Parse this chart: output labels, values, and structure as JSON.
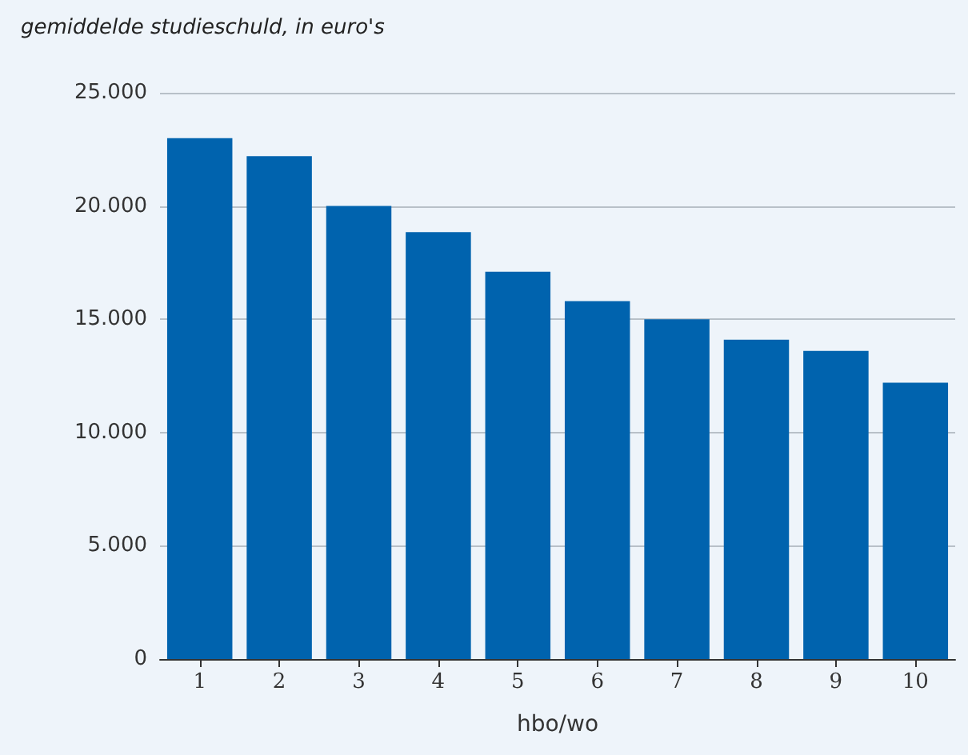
{
  "chart_data": {
    "type": "bar",
    "title": "gemiddelde studieschuld, in euro's",
    "xlabel": "hbo/wo",
    "categories": [
      "1",
      "2",
      "3",
      "4",
      "5",
      "6",
      "7",
      "8",
      "9",
      "10"
    ],
    "values": [
      23000,
      22200,
      20000,
      18850,
      17100,
      15800,
      15000,
      14100,
      13600,
      12200
    ],
    "color": "#0063ae",
    "ylim": [
      0,
      25000
    ],
    "yticks": [
      {
        "value": 0,
        "label": "0"
      },
      {
        "value": 5000,
        "label": "5.000"
      },
      {
        "value": 10000,
        "label": "10.000"
      },
      {
        "value": 15000,
        "label": "15.000"
      },
      {
        "value": 20000,
        "label": "20.000"
      },
      {
        "value": 25000,
        "label": "25.000"
      }
    ],
    "grid": "y"
  }
}
